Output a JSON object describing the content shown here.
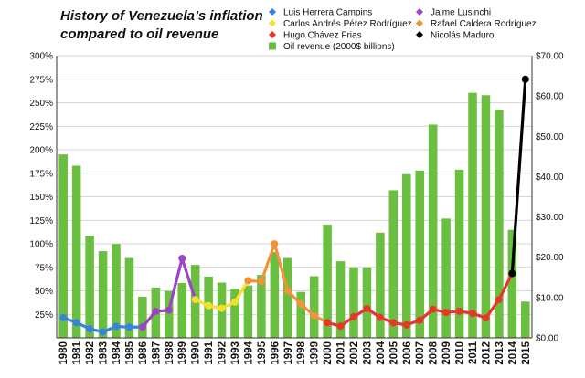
{
  "chart_data": {
    "type": "bar+line",
    "title_lines": [
      "History of Venezuela’s inflation",
      "compared to oil revenue"
    ],
    "x": [
      1980,
      1981,
      1982,
      1983,
      1984,
      1985,
      1986,
      1987,
      1988,
      1989,
      1990,
      1991,
      1992,
      1993,
      1994,
      1995,
      1996,
      1997,
      1998,
      1999,
      2000,
      2001,
      2002,
      2003,
      2004,
      2005,
      2006,
      2007,
      2008,
      2009,
      2010,
      2011,
      2012,
      2013,
      2014,
      2015
    ],
    "x_tick_labels": [
      "1980",
      "1981",
      "1982",
      "1983",
      "1984",
      "1985",
      "1986",
      "1987",
      "1988",
      "1989",
      "1990",
      "1991",
      "1992",
      "1993",
      "1994",
      "1995",
      "1996",
      "1997",
      "1998",
      "1999",
      "2000",
      "2001",
      "2002",
      "2003",
      "2004",
      "2005",
      "2006",
      "2007",
      "2008",
      "2009",
      "2010",
      "2011",
      "2012",
      "2013",
      "2014",
      "2015"
    ],
    "left_axis": {
      "ylim": [
        0,
        300
      ],
      "ticks": [
        25,
        50,
        75,
        100,
        125,
        150,
        175,
        200,
        225,
        250,
        275,
        300
      ],
      "tick_labels": [
        "25%",
        "50%",
        "75%",
        "100%",
        "125%",
        "150%",
        "175%",
        "200%",
        "225%",
        "250%",
        "275%",
        "300%"
      ]
    },
    "right_axis": {
      "ylim": [
        0,
        70
      ],
      "ticks": [
        0,
        10,
        20,
        30,
        40,
        50,
        60,
        70
      ],
      "tick_labels": [
        "$0.00",
        "$10.00",
        "$20.00",
        "$30.00",
        "$40.00",
        "$50.00",
        "$60.00",
        "$70.00"
      ]
    },
    "grid": true,
    "legend_position": "top",
    "bars": {
      "name": "Oil revenue (2000$ billions)",
      "color": "#6abf40",
      "axis": "right",
      "values": [
        45.5,
        42.7,
        25.3,
        21.5,
        23.3,
        19.8,
        10.2,
        12.5,
        11.6,
        13.6,
        18.1,
        15.2,
        13.7,
        12.2,
        13.0,
        15.6,
        21.3,
        19.8,
        11.4,
        15.3,
        28.1,
        19.0,
        17.5,
        17.5,
        26.1,
        36.6,
        40.6,
        41.5,
        52.9,
        29.6,
        41.7,
        60.8,
        60.2,
        56.6,
        26.8,
        9.0
      ]
    },
    "series": [
      {
        "name": "Luis Herrera Campins",
        "color": "#3b82e0",
        "axis": "left",
        "x": [
          1980,
          1981,
          1982,
          1983,
          1984,
          1985,
          1986
        ],
        "values": [
          21.5,
          16.2,
          9.6,
          6.3,
          12.2,
          11.4,
          11.5
        ]
      },
      {
        "name": "Jaime Lusinchi",
        "color": "#9b45c2",
        "axis": "left",
        "x": [
          1986,
          1987,
          1988,
          1989,
          1990
        ],
        "values": [
          11.5,
          28.1,
          29.5,
          84.5,
          40.7
        ]
      },
      {
        "name": "Carlos Andrés Pérez Rodríguez",
        "color": "#f5e02e",
        "axis": "left",
        "x": [
          1990,
          1991,
          1992,
          1993,
          1994
        ],
        "values": [
          40.7,
          34.2,
          31.4,
          38.1,
          60.8
        ]
      },
      {
        "name": "Rafael Caldera Rodríguez",
        "color": "#f2923a",
        "axis": "left",
        "x": [
          1994,
          1995,
          1996,
          1997,
          1998,
          1999,
          2000
        ],
        "values": [
          60.8,
          59.9,
          99.9,
          50.0,
          35.8,
          23.6,
          16.2
        ]
      },
      {
        "name": "Hugo Chávez Frias",
        "color": "#e8362c",
        "axis": "left",
        "x": [
          2000,
          2001,
          2002,
          2003,
          2004,
          2005,
          2006,
          2007,
          2008,
          2009,
          2010,
          2011,
          2012,
          2013,
          2014
        ],
        "values": [
          16.2,
          12.5,
          22.4,
          31.1,
          21.7,
          16.0,
          13.7,
          18.7,
          30.4,
          27.1,
          28.2,
          26.1,
          21.1,
          40.6,
          68.5
        ]
      },
      {
        "name": "Nicolás Maduro",
        "color": "#000000",
        "axis": "left",
        "x": [
          2014,
          2015
        ],
        "values": [
          68.5,
          275.0
        ]
      }
    ],
    "legend": [
      {
        "name": "Luis Herrera Campins",
        "color": "#3b82e0",
        "marker": "diamond"
      },
      {
        "name": "Jaime Lusinchi",
        "color": "#9b45c2",
        "marker": "diamond"
      },
      {
        "name": "Carlos Andrés Pérez Rodríguez",
        "color": "#f5e02e",
        "marker": "diamond"
      },
      {
        "name": "Rafael Caldera Rodríguez",
        "color": "#f2923a",
        "marker": "diamond"
      },
      {
        "name": "Hugo Chávez Frias",
        "color": "#e8362c",
        "marker": "diamond"
      },
      {
        "name": "Nicolás Maduro",
        "color": "#000000",
        "marker": "diamond"
      },
      {
        "name": "Oil revenue (2000$ billions)",
        "color": "#6abf40",
        "marker": "square"
      }
    ]
  }
}
